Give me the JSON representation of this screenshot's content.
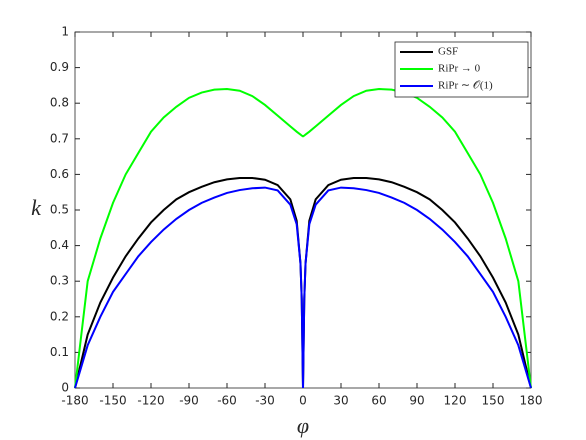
{
  "chart_data": {
    "type": "line",
    "xlabel": "φ",
    "ylabel": "k",
    "x": [
      -180,
      -170,
      -160,
      -150,
      -140,
      -130,
      -120,
      -110,
      -100,
      -90,
      -80,
      -70,
      -60,
      -50,
      -40,
      -30,
      -20,
      -10,
      -5,
      -2,
      -1,
      0,
      1,
      2,
      5,
      10,
      20,
      30,
      40,
      50,
      60,
      70,
      80,
      90,
      100,
      110,
      120,
      130,
      140,
      150,
      160,
      170,
      180
    ],
    "series": [
      {
        "name": "GSF",
        "color": "#000000",
        "values": [
          0,
          0.15,
          0.24,
          0.31,
          0.37,
          0.42,
          0.465,
          0.5,
          0.53,
          0.55,
          0.565,
          0.578,
          0.586,
          0.59,
          0.59,
          0.585,
          0.57,
          0.53,
          0.47,
          0.35,
          0.25,
          0,
          0.25,
          0.35,
          0.47,
          0.53,
          0.57,
          0.585,
          0.59,
          0.59,
          0.586,
          0.578,
          0.565,
          0.55,
          0.53,
          0.5,
          0.465,
          0.42,
          0.37,
          0.31,
          0.24,
          0.15,
          0
        ]
      },
      {
        "name": "RiPr → 0",
        "color": "#00ff00",
        "values": [
          0,
          0.3,
          0.42,
          0.52,
          0.6,
          0.66,
          0.72,
          0.76,
          0.79,
          0.815,
          0.83,
          0.838,
          0.84,
          0.835,
          0.82,
          0.795,
          0.765,
          0.735,
          0.72,
          0.712,
          0.709,
          0.707,
          0.709,
          0.712,
          0.72,
          0.735,
          0.765,
          0.795,
          0.82,
          0.835,
          0.84,
          0.838,
          0.83,
          0.815,
          0.79,
          0.76,
          0.72,
          0.66,
          0.6,
          0.52,
          0.42,
          0.3,
          0
        ]
      },
      {
        "name": "RiPr ∼ 𝒪(1)",
        "color": "#0000ff",
        "values": [
          0,
          0.12,
          0.2,
          0.27,
          0.32,
          0.37,
          0.41,
          0.445,
          0.475,
          0.5,
          0.52,
          0.535,
          0.548,
          0.556,
          0.561,
          0.563,
          0.555,
          0.515,
          0.46,
          0.35,
          0.25,
          0,
          0.25,
          0.35,
          0.46,
          0.515,
          0.555,
          0.563,
          0.561,
          0.556,
          0.548,
          0.535,
          0.52,
          0.5,
          0.475,
          0.445,
          0.41,
          0.37,
          0.32,
          0.27,
          0.2,
          0.12,
          0
        ]
      }
    ],
    "xlim": [
      -180,
      180
    ],
    "xticks": [
      -180,
      -150,
      -120,
      -90,
      -60,
      -30,
      0,
      30,
      60,
      90,
      120,
      150,
      180
    ],
    "ylim": [
      0,
      1
    ],
    "yticks": [
      0,
      0.1,
      0.2,
      0.3,
      0.4,
      0.5,
      0.6,
      0.7,
      0.8,
      0.9,
      1
    ],
    "legend": "upper right"
  }
}
